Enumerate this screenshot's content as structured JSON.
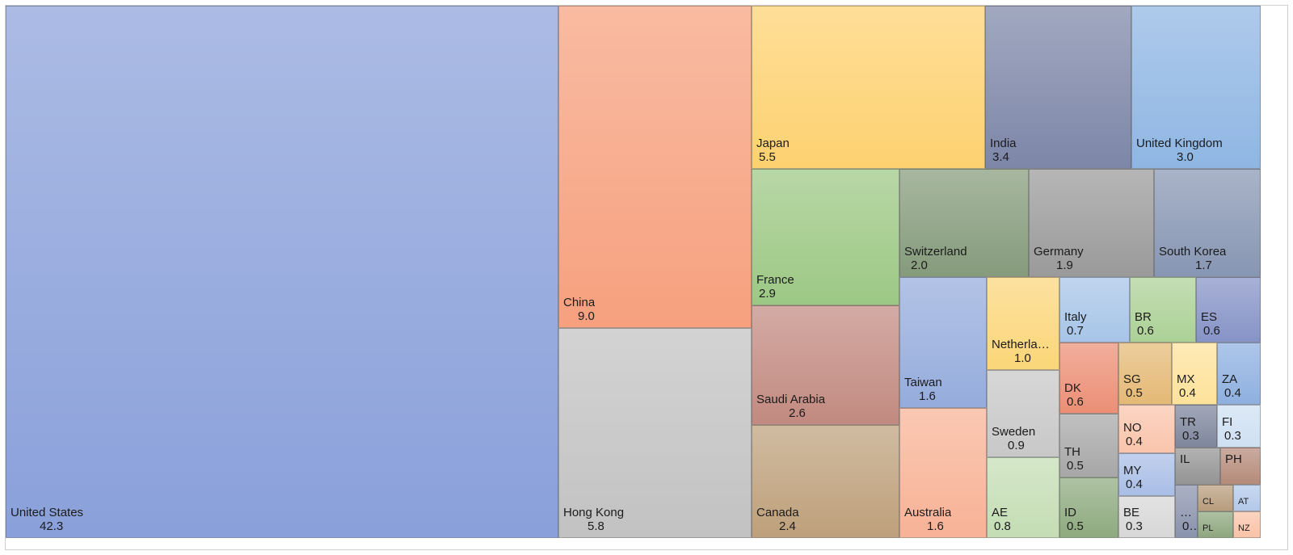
{
  "chart_data": {
    "type": "treemap",
    "title": "",
    "items": [
      {
        "label": "United States",
        "value": "42.3",
        "color": "#8aa0da"
      },
      {
        "label": "China",
        "value": "9.0",
        "color": "#f6a07e"
      },
      {
        "label": "Hong Kong",
        "value": "5.8",
        "color": "#c2c2c2"
      },
      {
        "label": "Japan",
        "value": "5.5",
        "color": "#fdd170"
      },
      {
        "label": "India",
        "value": "3.4",
        "color": "#7d86a8"
      },
      {
        "label": "United Kingdom",
        "value": "3.0",
        "color": "#8fb6e3"
      },
      {
        "label": "France",
        "value": "2.9",
        "color": "#9cc884"
      },
      {
        "label": "Switzerland",
        "value": "2.0",
        "color": "#859b7b"
      },
      {
        "label": "Germany",
        "value": "1.9",
        "color": "#9a9a9a"
      },
      {
        "label": "South Korea",
        "value": "1.7",
        "color": "#8796b3"
      },
      {
        "label": "Saudi Arabia",
        "value": "2.6",
        "color": "#c28a80"
      },
      {
        "label": "Canada",
        "value": "2.4",
        "color": "#bea07b"
      },
      {
        "label": "Taiwan",
        "value": "1.6",
        "color": "#95acdc"
      },
      {
        "label": "Australia",
        "value": "1.6",
        "color": "#f8b296"
      },
      {
        "label": "Netherla…",
        "value": "1.0",
        "color": "#fbd679"
      },
      {
        "label": "Sweden",
        "value": "0.9",
        "color": "#c8c8c8"
      },
      {
        "label": "AE",
        "value": "0.8",
        "color": "#c4ddb4"
      },
      {
        "label": "Italy",
        "value": "0.7",
        "color": "#a7c4e8"
      },
      {
        "label": "BR",
        "value": "0.6",
        "color": "#acd196"
      },
      {
        "label": "ES",
        "value": "0.6",
        "color": "#8693c6"
      },
      {
        "label": "DK",
        "value": "0.6",
        "color": "#ec8f76"
      },
      {
        "label": "SG",
        "value": "0.5",
        "color": "#e5b976"
      },
      {
        "label": "MX",
        "value": "0.4",
        "color": "#fde29a"
      },
      {
        "label": "ZA",
        "value": "0.4",
        "color": "#8eb0e0"
      },
      {
        "label": "TR",
        "value": "0.3",
        "color": "#7e869d"
      },
      {
        "label": "FI",
        "value": "0.3",
        "color": "#cfe0f3"
      },
      {
        "label": "NO",
        "value": "0.4",
        "color": "#f9c4ab"
      },
      {
        "label": "TH",
        "value": "0.5",
        "color": "#a7a7a7"
      },
      {
        "label": "MY",
        "value": "0.4",
        "color": "#a9bee6"
      },
      {
        "label": "ID",
        "value": "0.5",
        "color": "#8eaa7f"
      },
      {
        "label": "BE",
        "value": "0.3",
        "color": "#d7d7d7"
      },
      {
        "label": "IL",
        "value": "",
        "color": "#949494"
      },
      {
        "label": "PH",
        "value": "",
        "color": "#b58b7a"
      },
      {
        "label": "…",
        "value": "0…",
        "color": "#8a93ad"
      },
      {
        "label": "CL",
        "value": "",
        "color": "#b89d7c"
      },
      {
        "label": "AT",
        "value": "",
        "color": "#b3c9ea"
      },
      {
        "label": "PL",
        "value": "",
        "color": "#8fa77f"
      },
      {
        "label": "NZ",
        "value": "",
        "color": "#f9c3a8"
      }
    ]
  }
}
